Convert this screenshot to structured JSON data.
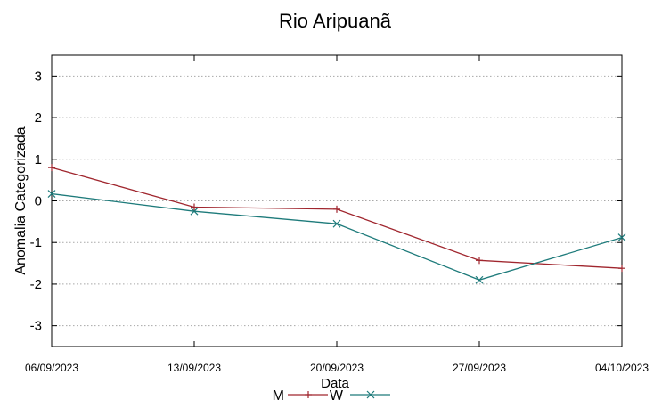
{
  "chart_data": {
    "type": "line",
    "title": "Rio Aripuanã",
    "xlabel": "Data",
    "ylabel": "Anomalia Categorizada",
    "categories": [
      "06/09/2023",
      "13/09/2023",
      "20/09/2023",
      "27/09/2023",
      "04/10/2023"
    ],
    "ylim": [
      -3.5,
      3.5
    ],
    "yticks": [
      -3,
      -2,
      -1,
      0,
      1,
      2,
      3
    ],
    "grid": true,
    "legend": "bottom-center",
    "series": [
      {
        "name": "M",
        "values": [
          0.8,
          -0.15,
          -0.2,
          -1.43,
          -1.62
        ],
        "color": "#a0262e",
        "marker": "plus"
      },
      {
        "name": "W",
        "values": [
          0.17,
          -0.25,
          -0.55,
          -1.9,
          -0.88
        ],
        "color": "#1e7b7b",
        "marker": "x"
      }
    ]
  }
}
